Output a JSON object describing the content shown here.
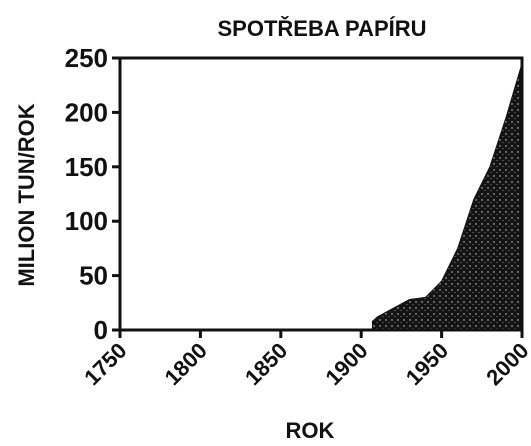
{
  "chart_data": {
    "type": "area",
    "title": "SPOTŘEBA PAPÍRU",
    "x_label": "ROK",
    "y_label": "MILION TUN/ROK",
    "x": [
      1907,
      1910,
      1920,
      1930,
      1940,
      1950,
      1960,
      1970,
      1980,
      1990,
      2000
    ],
    "values": [
      8,
      12,
      20,
      28,
      30,
      45,
      75,
      120,
      150,
      195,
      245
    ],
    "color": "#141414",
    "xlim": [
      1750,
      2000
    ],
    "xticks": [
      1750,
      1800,
      1850,
      1900,
      1950,
      2000
    ],
    "ylim": [
      0,
      250
    ],
    "yticks": [
      0,
      50,
      100,
      150,
      200,
      250
    ]
  }
}
